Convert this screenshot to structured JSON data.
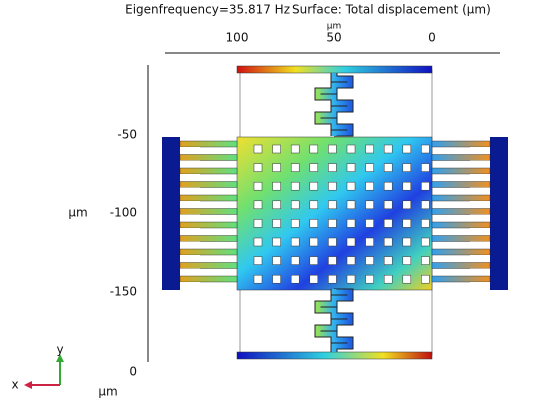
{
  "header": {
    "frequency": "Eigenfrequency=35.817 Hz",
    "surface": "Surface: Total displacement (µm)"
  },
  "top_axis": {
    "ticks": [
      "100",
      "50",
      "0"
    ],
    "unit": "µm"
  },
  "left_axis": {
    "ticks": [
      "-50",
      "-100",
      "-150"
    ],
    "unit": "µm"
  },
  "bottom_axis": {
    "ticks": [
      "0"
    ]
  },
  "triad": {
    "y": "y",
    "x": "x",
    "unit": "µm"
  }
}
